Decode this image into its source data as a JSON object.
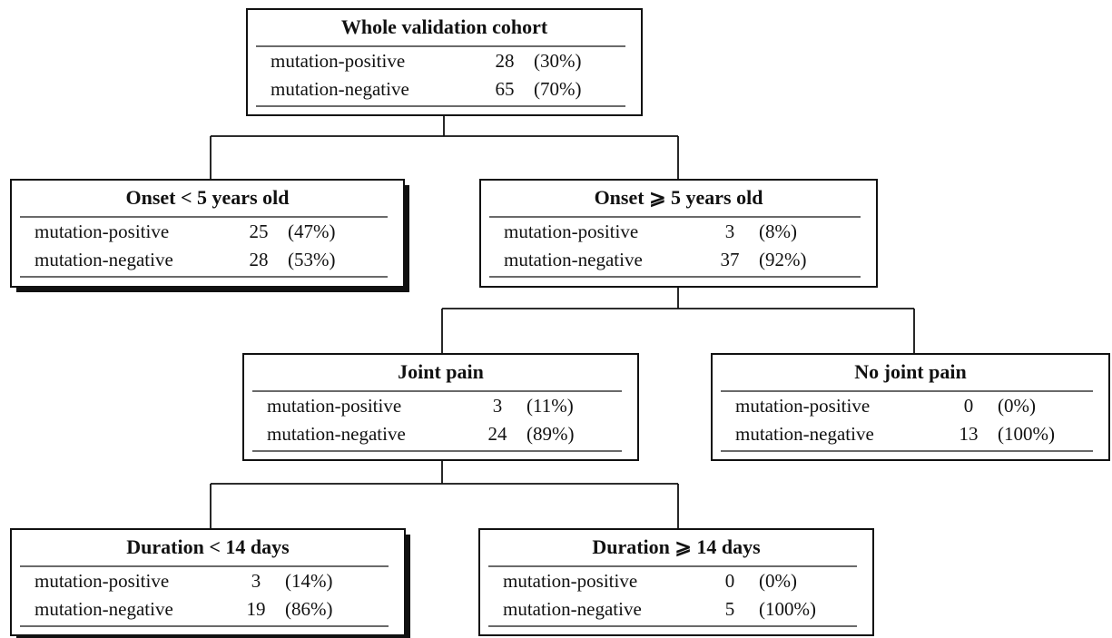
{
  "nodes": [
    {
      "title": "Whole validation cohort",
      "rows": [
        [
          "mutation-positive",
          "28",
          "(30%)"
        ],
        [
          "mutation-negative",
          "65",
          "(70%)"
        ]
      ]
    },
    {
      "title": "Onset < 5 years old",
      "rows": [
        [
          "mutation-positive",
          "25",
          "(47%)"
        ],
        [
          "mutation-negative",
          "28",
          "(53%)"
        ]
      ]
    },
    {
      "title": "Onset ⩾ 5 years old",
      "rows": [
        [
          "mutation-positive",
          "3",
          "(8%)"
        ],
        [
          "mutation-negative",
          "37",
          "(92%)"
        ]
      ]
    },
    {
      "title": "Joint pain",
      "rows": [
        [
          "mutation-positive",
          "3",
          "(11%)"
        ],
        [
          "mutation-negative",
          "24",
          "(89%)"
        ]
      ]
    },
    {
      "title": "No joint pain",
      "rows": [
        [
          "mutation-positive",
          "0",
          "(0%)"
        ],
        [
          "mutation-negative",
          "13",
          "(100%)"
        ]
      ]
    },
    {
      "title": "Duration < 14 days",
      "rows": [
        [
          "mutation-positive",
          "3",
          "(14%)"
        ],
        [
          "mutation-negative",
          "19",
          "(86%)"
        ]
      ]
    },
    {
      "title": "Duration ⩾ 14 days",
      "rows": [
        [
          "mutation-positive",
          "0",
          "(0%)"
        ],
        [
          "mutation-negative",
          "5",
          "(100%)"
        ]
      ]
    }
  ]
}
